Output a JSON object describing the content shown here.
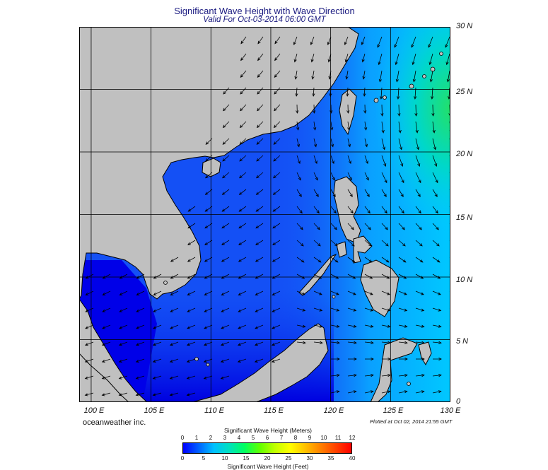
{
  "header": {
    "title": "Significant Wave Height with Wave Direction",
    "subtitle": "Valid For Oct-03-2014 06:00 GMT"
  },
  "map": {
    "lon_range": [
      99,
      130
    ],
    "lat_range": [
      0,
      30
    ],
    "lat_labels": [
      "30 N",
      "25 N",
      "20 N",
      "15 N",
      "10 N",
      "5 N",
      "0"
    ],
    "lon_labels": [
      "100 E",
      "105 E",
      "110 E",
      "115 E",
      "120 E",
      "125 E",
      "130 E"
    ],
    "grid_lines": true,
    "colors": {
      "land": "#c0c0c0",
      "coast": "#000000",
      "deep_blue": "#0000ff",
      "mid_blue": "#1450f5",
      "cyan": "#00c8ff",
      "green": "#22e06a",
      "arrow": "#000000"
    }
  },
  "footer": {
    "company": "oceanweather inc.",
    "plotted": "Plotted at Oct 02, 2014 21:55 GMT"
  },
  "legend": {
    "title_top": "Significant Wave Height (Meters)",
    "title_bottom": "Significant Wave Height (Feet)",
    "meters": [
      "0",
      "1",
      "2",
      "3",
      "4",
      "5",
      "6",
      "7",
      "8",
      "9",
      "10",
      "11",
      "12"
    ],
    "feet": [
      "0",
      "5",
      "10",
      "15",
      "20",
      "25",
      "30",
      "35",
      "40"
    ],
    "palette": [
      "#0000ff",
      "#0060ff",
      "#00c0ff",
      "#00e0c0",
      "#00ff60",
      "#60ff00",
      "#c0ff00",
      "#ffff00",
      "#ffc000",
      "#ff8000",
      "#ff4000",
      "#ff0000"
    ]
  }
}
